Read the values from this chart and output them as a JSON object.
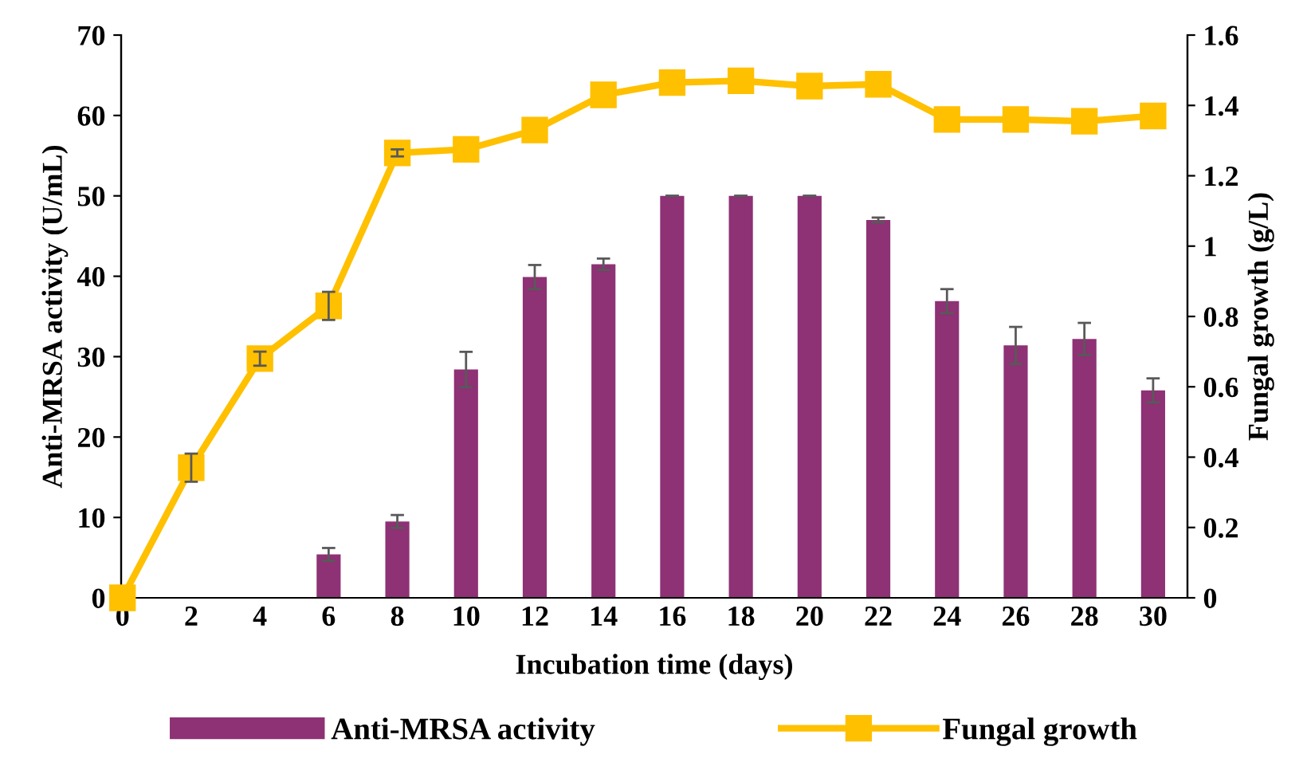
{
  "chart_data": {
    "type": "bar",
    "xlabel": "Incubation time (days)",
    "ylabel": "Anti-MRSA activity (U/mL)",
    "y2label": "Fungal growth (g/L)",
    "categories": [
      "0",
      "2",
      "4",
      "6",
      "8",
      "10",
      "12",
      "14",
      "16",
      "18",
      "20",
      "22",
      "24",
      "26",
      "28",
      "30"
    ],
    "series": [
      {
        "name": "Anti-MRSA activity",
        "color": "#8e3175",
        "values": [
          0,
          0,
          0,
          5.4,
          9.5,
          28.4,
          39.9,
          41.5,
          50,
          50,
          50,
          47,
          36.9,
          31.4,
          32.2,
          25.8
        ],
        "errors": [
          null,
          null,
          null,
          0.8,
          0.8,
          2.2,
          1.5,
          0.7,
          0,
          0,
          0,
          0.3,
          1.5,
          2.3,
          2.0,
          1.5
        ]
      },
      {
        "name": "Fungal growth",
        "type": "line",
        "axis": "y2",
        "color": "#ffc000",
        "marker": "square",
        "values": [
          0,
          0.37,
          0.68,
          0.83,
          1.265,
          1.275,
          1.33,
          1.43,
          1.465,
          1.47,
          1.455,
          1.46,
          1.36,
          1.36,
          1.355,
          1.37
        ],
        "errors": [
          null,
          0.04,
          0.02,
          0.04,
          0.01,
          null,
          null,
          null,
          null,
          null,
          null,
          null,
          null,
          null,
          null,
          null
        ]
      }
    ],
    "ylim": [
      0,
      70
    ],
    "yticks": [
      0,
      10,
      20,
      30,
      40,
      50,
      60,
      70
    ],
    "y2lim": [
      0,
      1.6
    ],
    "y2ticks": [
      0,
      0.2,
      0.4,
      0.6,
      0.8,
      1,
      1.2,
      1.4,
      1.6
    ],
    "grid": false,
    "legend": "bottom"
  }
}
